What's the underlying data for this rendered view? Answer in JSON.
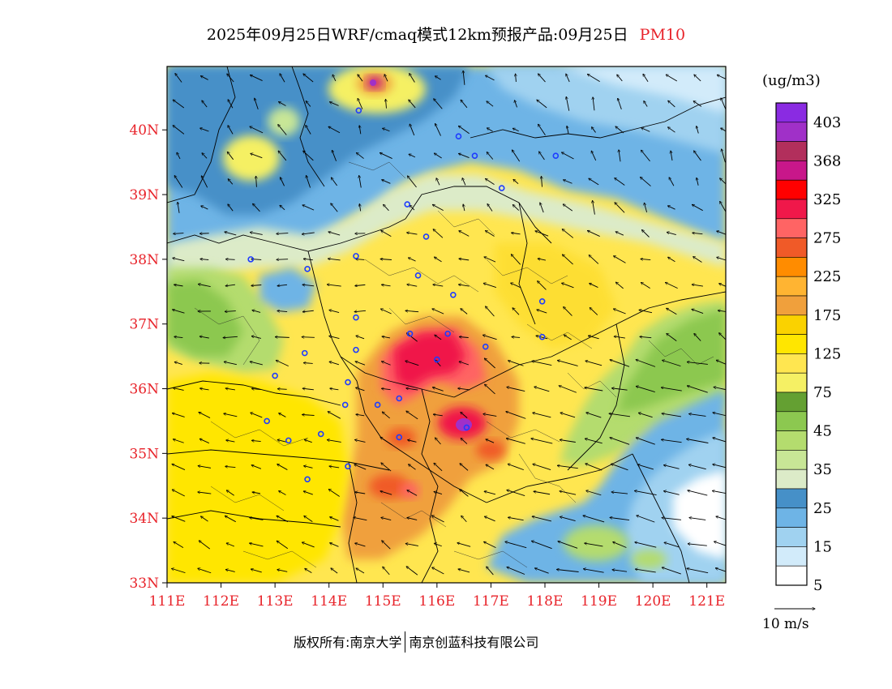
{
  "title": {
    "text": "2025年09月25日WRF/cmaq模式12km预报产品:09月25日",
    "variable": "PM10"
  },
  "colors": {
    "title_var": "#e8232a",
    "axis_labels": "#e8232a",
    "border": "#000000"
  },
  "axes": {
    "lat_labels": [
      "40N",
      "39N",
      "38N",
      "37N",
      "36N",
      "35N",
      "34N",
      "33N"
    ],
    "lat_values": [
      40,
      39,
      38,
      37,
      36,
      35,
      34,
      33
    ],
    "lon_labels": [
      "111E",
      "112E",
      "113E",
      "114E",
      "115E",
      "116E",
      "117E",
      "118E",
      "119E",
      "120E",
      "121E"
    ],
    "lon_values": [
      111,
      112,
      113,
      114,
      115,
      116,
      117,
      118,
      119,
      120,
      121
    ],
    "lat_range": [
      33,
      40.98
    ],
    "lon_range": [
      111,
      121.35
    ]
  },
  "legend": {
    "unit": "(ug/m3)",
    "labels": [
      "403",
      "368",
      "325",
      "275",
      "225",
      "175",
      "125",
      "75",
      "45",
      "35",
      "25",
      "15",
      "5"
    ],
    "colors": [
      "#8a2be2",
      "#a030c8",
      "#b22f5c",
      "#c8178a",
      "#ff0000",
      "#f0184a",
      "#ff6464",
      "#f05a28",
      "#ff8c00",
      "#ffb432",
      "#f0a03c",
      "#fad200",
      "#ffe600",
      "#ffe650",
      "#f5f064",
      "#64a032",
      "#8cc850",
      "#b4dc6e",
      "#c8e696",
      "#dcebc8",
      "#4690c8",
      "#6eb4e6",
      "#a0d2f0",
      "#d2ebfa",
      "#ffffff"
    ]
  },
  "wind_reference": {
    "label": "10 m/s"
  },
  "footer": {
    "prefix": "版权所有:",
    "org1": "南京大学",
    "org2": "南京创蓝科技有限公司"
  },
  "stations": [
    [
      114.55,
      40.3
    ],
    [
      116.4,
      39.9
    ],
    [
      116.7,
      39.6
    ],
    [
      117.2,
      39.1
    ],
    [
      118.2,
      39.6
    ],
    [
      115.45,
      38.85
    ],
    [
      115.8,
      38.35
    ],
    [
      114.5,
      38.05
    ],
    [
      112.55,
      38.0
    ],
    [
      113.6,
      37.85
    ],
    [
      115.65,
      37.75
    ],
    [
      116.3,
      37.45
    ],
    [
      114.5,
      37.1
    ],
    [
      113.55,
      36.55
    ],
    [
      114.5,
      36.6
    ],
    [
      115.5,
      36.85
    ],
    [
      116.0,
      36.45
    ],
    [
      116.2,
      36.85
    ],
    [
      116.9,
      36.65
    ],
    [
      117.95,
      37.35
    ],
    [
      117.95,
      36.8
    ],
    [
      113.0,
      36.2
    ],
    [
      114.35,
      36.1
    ],
    [
      114.3,
      35.75
    ],
    [
      114.9,
      35.75
    ],
    [
      115.3,
      35.85
    ],
    [
      112.85,
      35.5
    ],
    [
      113.25,
      35.2
    ],
    [
      113.85,
      35.3
    ],
    [
      115.3,
      35.25
    ],
    [
      116.55,
      35.4
    ],
    [
      114.35,
      34.8
    ],
    [
      113.6,
      34.6
    ]
  ]
}
